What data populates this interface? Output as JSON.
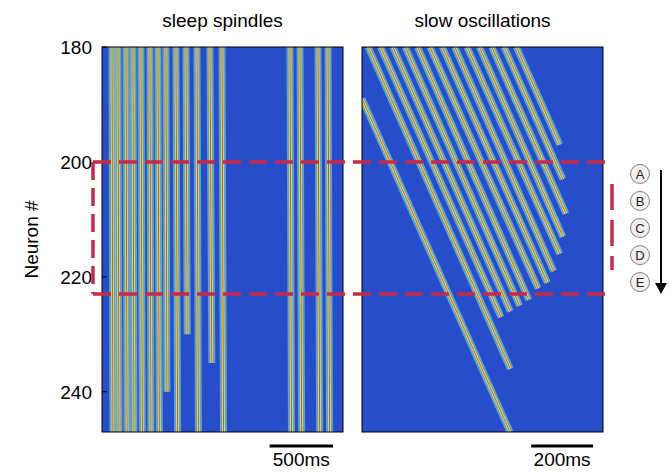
{
  "chart_data": [
    {
      "type": "raster",
      "title": "sleep spindles",
      "y_label": "Neuron #",
      "xlim": [
        0,
        1900
      ],
      "ylim": [
        180,
        247
      ],
      "yticks": [
        180,
        200,
        220,
        240
      ],
      "tick_labels": "y",
      "scale_bar": {
        "value": 500,
        "label": "500ms"
      },
      "events": [
        {
          "t": [
            79,
            86
          ],
          "n": [
            180,
            247
          ]
        },
        {
          "t": [
            126,
            134
          ],
          "n": [
            180,
            247
          ]
        },
        {
          "t": [
            189,
            198
          ],
          "n": [
            180,
            247
          ]
        },
        {
          "t": [
            244,
            252
          ],
          "n": [
            180,
            247
          ]
        },
        {
          "t": [
            307,
            318
          ],
          "n": [
            180,
            247
          ]
        },
        {
          "t": [
            378,
            386
          ],
          "n": [
            180,
            247
          ]
        },
        {
          "t": [
            441,
            452
          ],
          "n": [
            180,
            247
          ]
        },
        {
          "t": [
            504,
            512
          ],
          "n": [
            180,
            240
          ]
        },
        {
          "t": [
            583,
            596
          ],
          "n": [
            180,
            247
          ]
        },
        {
          "t": [
            662,
            672
          ],
          "n": [
            180,
            230
          ]
        },
        {
          "t": [
            749,
            760
          ],
          "n": [
            180,
            247
          ]
        },
        {
          "t": [
            851,
            866
          ],
          "n": [
            180,
            235
          ]
        },
        {
          "t": [
            946,
            958
          ],
          "n": [
            180,
            247
          ]
        },
        {
          "t": [
            1482,
            1494
          ],
          "n": [
            180,
            247
          ]
        },
        {
          "t": [
            1561,
            1574
          ],
          "n": [
            180,
            247
          ]
        },
        {
          "t": [
            1703,
            1716
          ],
          "n": [
            180,
            247
          ]
        },
        {
          "t": [
            1782,
            1794
          ],
          "n": [
            180,
            247
          ]
        }
      ]
    },
    {
      "type": "raster",
      "title": "slow oscillations",
      "xlim": [
        0,
        780
      ],
      "ylim": [
        180,
        247
      ],
      "tick_labels": false,
      "scale_bar": {
        "value": 200,
        "label": "200ms"
      },
      "events": [
        {
          "t": [
            0,
            479
          ],
          "n": [
            189,
            247
          ]
        },
        {
          "t": [
            20,
            480
          ],
          "n": [
            180,
            236
          ]
        },
        {
          "t": [
            60,
            450
          ],
          "n": [
            180,
            227
          ]
        },
        {
          "t": [
            100,
            480
          ],
          "n": [
            180,
            226
          ]
        },
        {
          "t": [
            140,
            510
          ],
          "n": [
            180,
            225
          ]
        },
        {
          "t": [
            180,
            540
          ],
          "n": [
            180,
            224
          ]
        },
        {
          "t": [
            220,
            570
          ],
          "n": [
            180,
            222
          ]
        },
        {
          "t": [
            260,
            600
          ],
          "n": [
            180,
            221
          ]
        },
        {
          "t": [
            300,
            620
          ],
          "n": [
            180,
            219
          ]
        },
        {
          "t": [
            340,
            640
          ],
          "n": [
            180,
            216
          ]
        },
        {
          "t": [
            380,
            650
          ],
          "n": [
            180,
            213
          ]
        },
        {
          "t": [
            420,
            660
          ],
          "n": [
            180,
            209
          ]
        },
        {
          "t": [
            460,
            650
          ],
          "n": [
            180,
            203
          ]
        },
        {
          "t": [
            500,
            640
          ],
          "n": [
            180,
            197
          ]
        }
      ]
    }
  ],
  "figure": {
    "highlight_neurons": [
      200,
      223
    ],
    "electrodes": [
      "A",
      "B",
      "C",
      "D",
      "E"
    ]
  }
}
